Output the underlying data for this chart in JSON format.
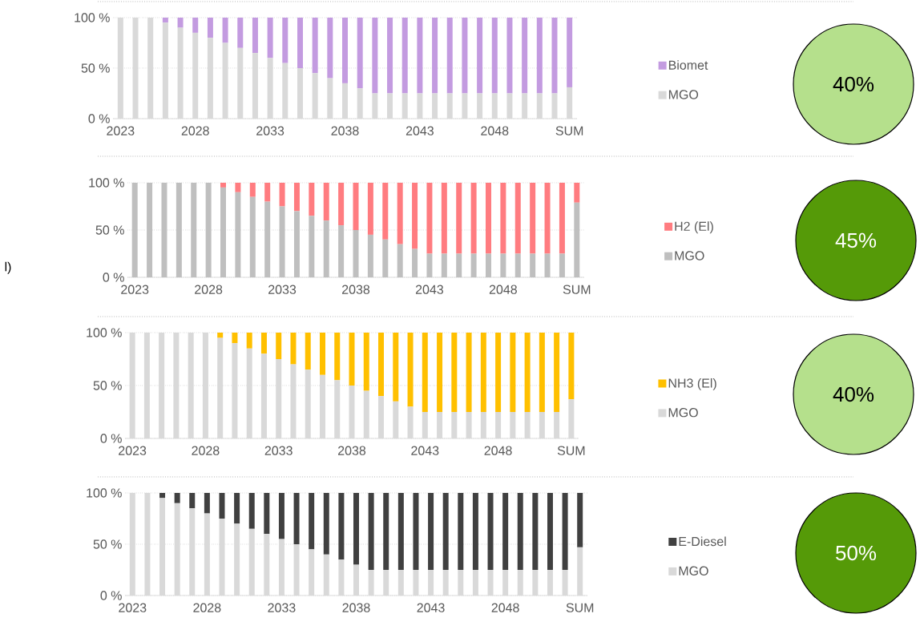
{
  "chart_data": [
    {
      "type": "bar",
      "stacked": true,
      "categories": [
        "2023",
        null,
        null,
        null,
        null,
        "2028",
        null,
        null,
        null,
        null,
        "2033",
        null,
        null,
        null,
        null,
        "2038",
        null,
        null,
        null,
        null,
        "2043",
        null,
        null,
        null,
        null,
        "2048",
        null,
        null,
        null,
        null,
        "SUM"
      ],
      "ylim": [
        0,
        100
      ],
      "yticks": [
        {
          "value": 0,
          "label": "0 %"
        },
        {
          "value": 50,
          "label": "50 %"
        },
        {
          "value": 100,
          "label": "100 %"
        }
      ],
      "grid": "y",
      "legend": "right",
      "series": [
        {
          "name": "MGO",
          "color": "#d9d9d9",
          "values": [
            100,
            100,
            100,
            95,
            90,
            85,
            80,
            75,
            70,
            65,
            60,
            55,
            50,
            45,
            40,
            35,
            30,
            25,
            25,
            25,
            25,
            25,
            25,
            25,
            25,
            25,
            25,
            25,
            25,
            25,
            31
          ]
        },
        {
          "name": "Biomet",
          "color": "#c39be0",
          "values": [
            0,
            0,
            0,
            5,
            10,
            15,
            20,
            25,
            30,
            35,
            40,
            45,
            50,
            55,
            60,
            65,
            70,
            75,
            75,
            75,
            75,
            75,
            75,
            75,
            75,
            75,
            75,
            75,
            75,
            75,
            69
          ]
        }
      ]
    },
    {
      "type": "other",
      "annotations": [
        "40%"
      ],
      "color": "#b5e08c"
    },
    {
      "type": "bar",
      "stacked": true,
      "categories": [
        "2023",
        null,
        null,
        null,
        null,
        "2028",
        null,
        null,
        null,
        null,
        "2033",
        null,
        null,
        null,
        null,
        "2038",
        null,
        null,
        null,
        null,
        "2043",
        null,
        null,
        null,
        null,
        "2048",
        null,
        null,
        null,
        null,
        "SUM"
      ],
      "ylim": [
        0,
        100
      ],
      "yticks": [
        {
          "value": 0,
          "label": "0 %"
        },
        {
          "value": 50,
          "label": "50 %"
        },
        {
          "value": 100,
          "label": "100 %"
        }
      ],
      "grid": "y",
      "legend": "right",
      "annotations": [
        "l)"
      ],
      "series": [
        {
          "name": "MGO",
          "color": "#bfbfbf",
          "values": [
            100,
            100,
            100,
            100,
            100,
            100,
            95,
            90,
            85,
            80,
            75,
            70,
            65,
            60,
            55,
            50,
            45,
            40,
            35,
            30,
            25,
            25,
            25,
            25,
            25,
            25,
            25,
            25,
            25,
            25,
            79
          ]
        },
        {
          "name": "H2 (El)",
          "color": "#ff7c80",
          "values": [
            0,
            0,
            0,
            0,
            0,
            0,
            5,
            10,
            15,
            20,
            25,
            30,
            35,
            40,
            45,
            50,
            55,
            60,
            65,
            70,
            75,
            75,
            75,
            75,
            75,
            75,
            75,
            75,
            75,
            75,
            21
          ]
        }
      ]
    },
    {
      "type": "other",
      "annotations": [
        "45%"
      ],
      "color": "#559a08"
    },
    {
      "type": "bar",
      "stacked": true,
      "categories": [
        "2023",
        null,
        null,
        null,
        null,
        "2028",
        null,
        null,
        null,
        null,
        "2033",
        null,
        null,
        null,
        null,
        "2038",
        null,
        null,
        null,
        null,
        "2043",
        null,
        null,
        null,
        null,
        "2048",
        null,
        null,
        null,
        null,
        "SUM"
      ],
      "ylim": [
        0,
        100
      ],
      "yticks": [
        {
          "value": 0,
          "label": "0 %"
        },
        {
          "value": 50,
          "label": "50 %"
        },
        {
          "value": 100,
          "label": "100 %"
        }
      ],
      "grid": "y",
      "legend": "right",
      "series": [
        {
          "name": "MGO",
          "color": "#d9d9d9",
          "values": [
            100,
            100,
            100,
            100,
            100,
            100,
            95,
            90,
            85,
            80,
            75,
            70,
            65,
            60,
            55,
            50,
            45,
            40,
            35,
            30,
            25,
            25,
            25,
            25,
            25,
            25,
            25,
            25,
            25,
            25,
            37
          ]
        },
        {
          "name": "NH3 (El)",
          "color": "#ffc000",
          "values": [
            0,
            0,
            0,
            0,
            0,
            0,
            5,
            10,
            15,
            20,
            25,
            30,
            35,
            40,
            45,
            50,
            55,
            60,
            65,
            70,
            75,
            75,
            75,
            75,
            75,
            75,
            75,
            75,
            75,
            75,
            63
          ]
        }
      ]
    },
    {
      "type": "other",
      "annotations": [
        "40%"
      ],
      "color": "#b5e08c"
    },
    {
      "type": "bar",
      "stacked": true,
      "categories": [
        "2023",
        null,
        null,
        null,
        null,
        "2028",
        null,
        null,
        null,
        null,
        "2033",
        null,
        null,
        null,
        null,
        "2038",
        null,
        null,
        null,
        null,
        "2043",
        null,
        null,
        null,
        null,
        "2048",
        null,
        null,
        null,
        null,
        "SUM"
      ],
      "ylim": [
        0,
        100
      ],
      "yticks": [
        {
          "value": 0,
          "label": "0 %"
        },
        {
          "value": 50,
          "label": "50 %"
        },
        {
          "value": 100,
          "label": "100 %"
        }
      ],
      "grid": "y",
      "legend": "right",
      "series": [
        {
          "name": "MGO",
          "color": "#d9d9d9",
          "values": [
            100,
            100,
            95,
            90,
            85,
            80,
            75,
            70,
            65,
            60,
            55,
            50,
            45,
            40,
            35,
            30,
            25,
            25,
            25,
            25,
            25,
            25,
            25,
            25,
            25,
            25,
            25,
            25,
            25,
            25,
            47
          ]
        },
        {
          "name": "E-Diesel",
          "color": "#404040",
          "values": [
            0,
            0,
            5,
            10,
            15,
            20,
            25,
            30,
            35,
            40,
            45,
            50,
            55,
            60,
            65,
            70,
            75,
            75,
            75,
            75,
            75,
            75,
            75,
            75,
            75,
            75,
            75,
            75,
            75,
            75,
            53
          ]
        }
      ]
    },
    {
      "type": "other",
      "annotations": [
        "50%"
      ],
      "color": "#559a08"
    }
  ]
}
